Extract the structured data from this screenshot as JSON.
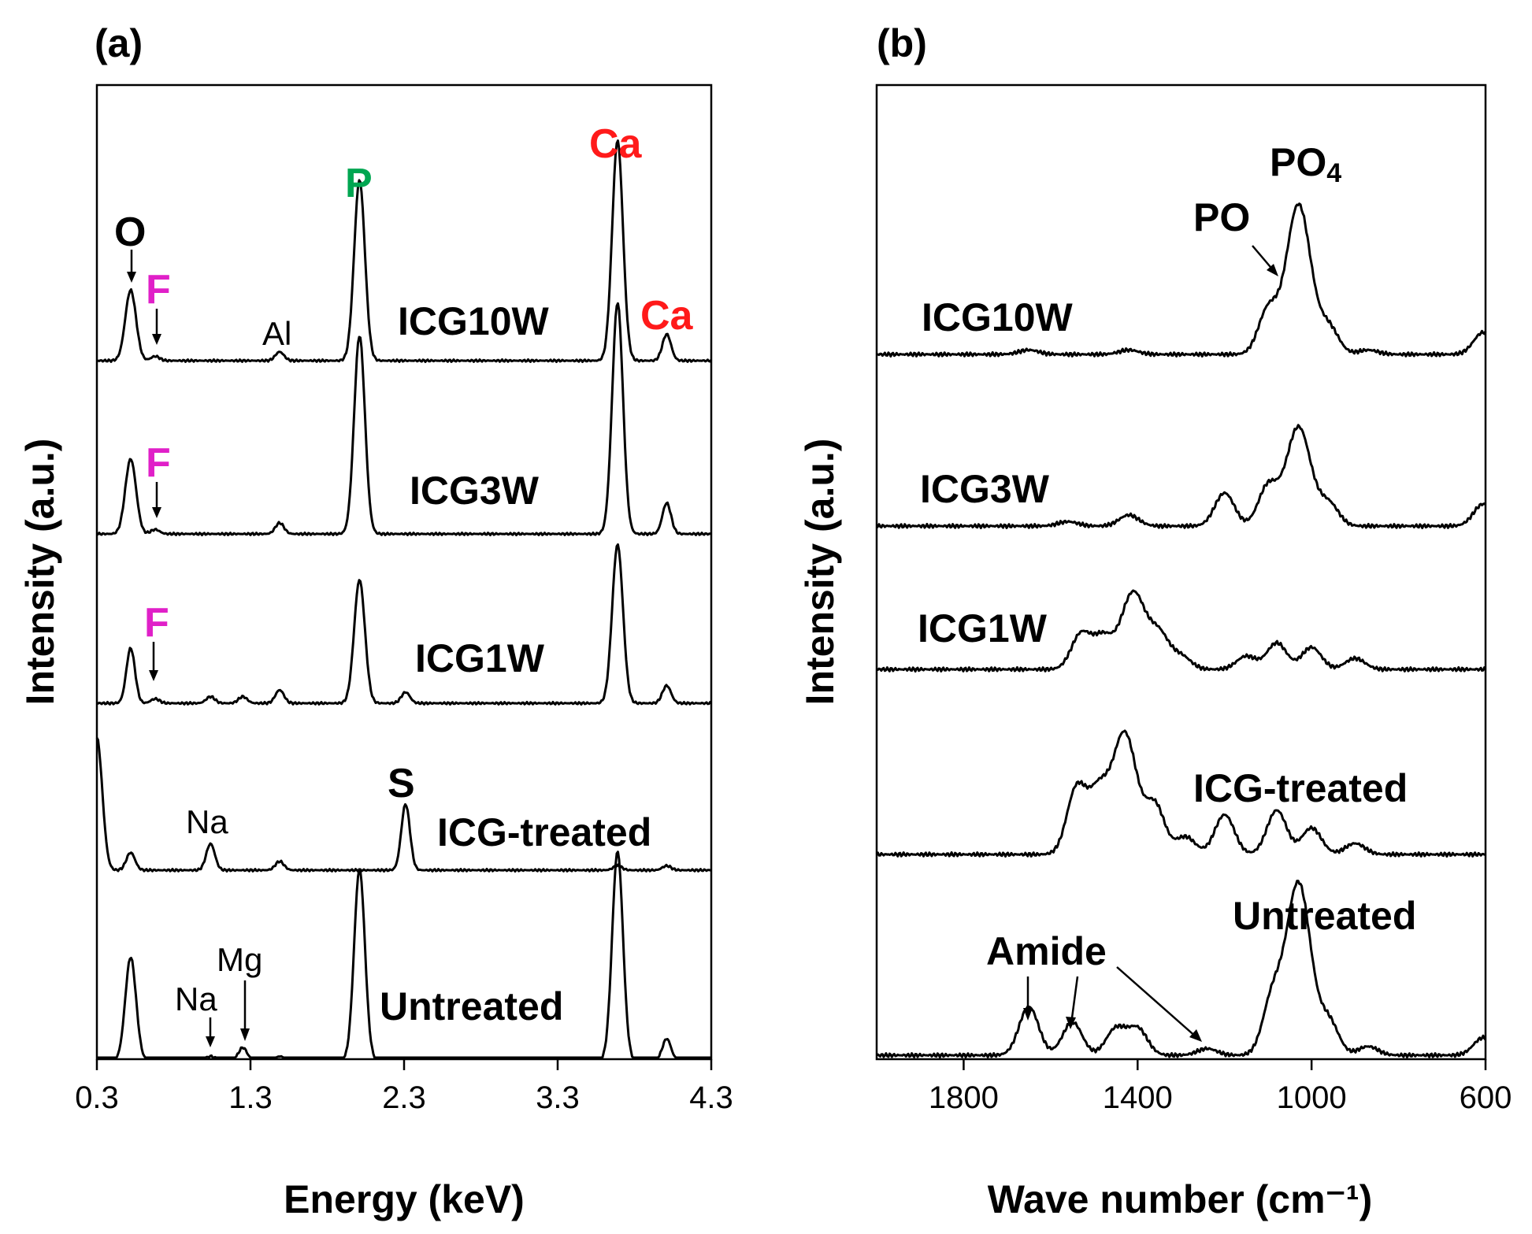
{
  "chart_data": [
    {
      "panel": "(a)",
      "type": "line",
      "xlabel": "Energy (keV)",
      "ylabel": "Intensity (a.u.)",
      "xlim": [
        0.3,
        4.3
      ],
      "x_ticks": [
        "0.3",
        "1.3",
        "2.3",
        "3.3",
        "4.3"
      ],
      "x_tick_values": [
        0.3,
        1.3,
        2.3,
        3.3,
        4.3
      ],
      "series": [
        {
          "name": "ICG10W",
          "peaks": [
            {
              "x": 0.52,
              "h": 0.32
            },
            {
              "x": 0.68,
              "h": 0.02
            },
            {
              "x": 1.49,
              "h": 0.04
            },
            {
              "x": 2.01,
              "h": 0.82
            },
            {
              "x": 3.69,
              "h": 1.0
            },
            {
              "x": 4.01,
              "h": 0.12
            }
          ]
        },
        {
          "name": "ICG3W",
          "peaks": [
            {
              "x": 0.52,
              "h": 0.34
            },
            {
              "x": 0.68,
              "h": 0.02
            },
            {
              "x": 1.49,
              "h": 0.05
            },
            {
              "x": 2.01,
              "h": 0.9
            },
            {
              "x": 3.69,
              "h": 1.05
            },
            {
              "x": 4.01,
              "h": 0.14
            }
          ]
        },
        {
          "name": "ICG1W",
          "peaks": [
            {
              "x": 0.52,
              "h": 0.25
            },
            {
              "x": 0.68,
              "h": 0.02
            },
            {
              "x": 1.04,
              "h": 0.03
            },
            {
              "x": 1.25,
              "h": 0.03
            },
            {
              "x": 1.49,
              "h": 0.06
            },
            {
              "x": 2.01,
              "h": 0.56
            },
            {
              "x": 2.31,
              "h": 0.05
            },
            {
              "x": 3.69,
              "h": 0.72
            },
            {
              "x": 4.01,
              "h": 0.08
            }
          ]
        },
        {
          "name": "ICG-treated",
          "peaks": [
            {
              "x": 0.3,
              "h": 0.6
            },
            {
              "x": 0.52,
              "h": 0.08
            },
            {
              "x": 1.04,
              "h": 0.12
            },
            {
              "x": 1.49,
              "h": 0.04
            },
            {
              "x": 2.31,
              "h": 0.3
            },
            {
              "x": 3.69,
              "h": 0.02
            },
            {
              "x": 4.01,
              "h": 0.02
            }
          ]
        },
        {
          "name": "Untreated",
          "peaks": [
            {
              "x": 0.52,
              "h": 0.47
            },
            {
              "x": 1.04,
              "h": 0.02
            },
            {
              "x": 1.25,
              "h": 0.06
            },
            {
              "x": 1.49,
              "h": 0.02
            },
            {
              "x": 2.01,
              "h": 0.87
            },
            {
              "x": 3.69,
              "h": 0.95
            },
            {
              "x": 4.01,
              "h": 0.1
            }
          ]
        }
      ],
      "annotations": {
        "O": "O",
        "F": "F",
        "Al": "Al",
        "P": "P",
        "Ca": "Ca",
        "S": "S",
        "Na": "Na",
        "Mg": "Mg"
      }
    },
    {
      "panel": "(b)",
      "type": "line",
      "xlabel": "Wave number (cm⁻¹)",
      "ylabel": "Intensity (a.u.)",
      "xlim": [
        2000,
        600
      ],
      "x_ticks": [
        "1800",
        "1400",
        "1000",
        "600"
      ],
      "x_tick_values": [
        1800,
        1400,
        1000,
        600
      ],
      "series": [
        {
          "name": "ICG10W",
          "peaks": [
            {
              "x": 1650,
              "h": 0.02
            },
            {
              "x": 1420,
              "h": 0.02
            },
            {
              "x": 1100,
              "h": 0.2
            },
            {
              "x": 1030,
              "h": 0.68
            },
            {
              "x": 960,
              "h": 0.12
            },
            {
              "x": 870,
              "h": 0.02
            },
            {
              "x": 605,
              "h": 0.1
            }
          ]
        },
        {
          "name": "ICG3W",
          "peaks": [
            {
              "x": 1560,
              "h": 0.02
            },
            {
              "x": 1420,
              "h": 0.05
            },
            {
              "x": 1200,
              "h": 0.15
            },
            {
              "x": 1100,
              "h": 0.18
            },
            {
              "x": 1030,
              "h": 0.45
            },
            {
              "x": 960,
              "h": 0.1
            },
            {
              "x": 605,
              "h": 0.1
            }
          ]
        },
        {
          "name": "ICG1W",
          "peaks": [
            {
              "x": 1530,
              "h": 0.16
            },
            {
              "x": 1480,
              "h": 0.14
            },
            {
              "x": 1410,
              "h": 0.35
            },
            {
              "x": 1350,
              "h": 0.15
            },
            {
              "x": 1300,
              "h": 0.06
            },
            {
              "x": 1150,
              "h": 0.06
            },
            {
              "x": 1080,
              "h": 0.12
            },
            {
              "x": 1000,
              "h": 0.1
            },
            {
              "x": 900,
              "h": 0.05
            }
          ]
        },
        {
          "name": "ICG-treated",
          "peaks": [
            {
              "x": 1540,
              "h": 0.3
            },
            {
              "x": 1490,
              "h": 0.26
            },
            {
              "x": 1430,
              "h": 0.55
            },
            {
              "x": 1360,
              "h": 0.22
            },
            {
              "x": 1290,
              "h": 0.08
            },
            {
              "x": 1200,
              "h": 0.18
            },
            {
              "x": 1080,
              "h": 0.2
            },
            {
              "x": 1000,
              "h": 0.12
            },
            {
              "x": 900,
              "h": 0.05
            }
          ]
        },
        {
          "name": "Untreated",
          "peaks": [
            {
              "x": 1650,
              "h": 0.22
            },
            {
              "x": 1550,
              "h": 0.15
            },
            {
              "x": 1450,
              "h": 0.12
            },
            {
              "x": 1400,
              "h": 0.12
            },
            {
              "x": 1240,
              "h": 0.03
            },
            {
              "x": 1090,
              "h": 0.25
            },
            {
              "x": 1030,
              "h": 0.78
            },
            {
              "x": 960,
              "h": 0.15
            },
            {
              "x": 870,
              "h": 0.04
            },
            {
              "x": 605,
              "h": 0.08
            }
          ]
        }
      ],
      "annotations": {
        "PO": "PO",
        "PO4": "PO",
        "PO4_sub": "4",
        "Amide": "Amide"
      }
    }
  ],
  "colors": {
    "P": "#00a651",
    "Ca": "#ff1a1a",
    "F": "#e020c8",
    "line": "#000000"
  }
}
